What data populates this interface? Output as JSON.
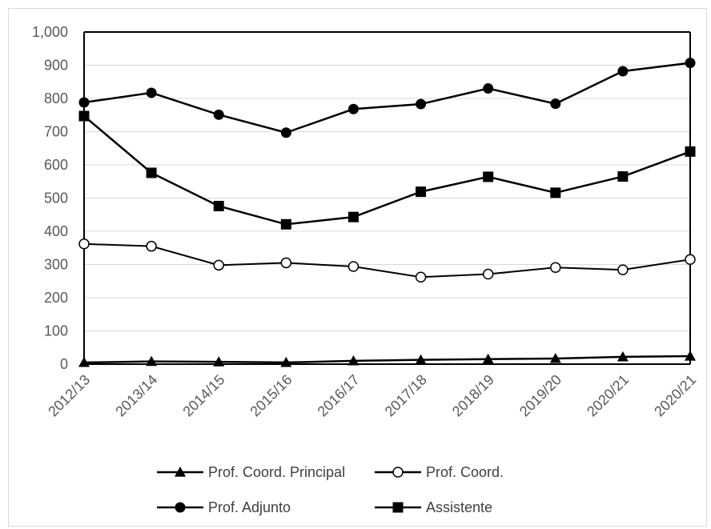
{
  "chart_data": {
    "type": "line",
    "categories": [
      "2012/13",
      "2013/14",
      "2014/15",
      "2015/16",
      "2016/17",
      "2017/18",
      "2018/19",
      "2019/20",
      "2020/21",
      "2020/21"
    ],
    "ylim": [
      0,
      1000
    ],
    "yticks": [
      0,
      100,
      200,
      300,
      400,
      500,
      600,
      700,
      800,
      900,
      1000
    ],
    "ytick_labels": [
      "0",
      "100",
      "200",
      "300",
      "400",
      "500",
      "600",
      "700",
      "800",
      "900",
      "1,000"
    ],
    "grid": true,
    "legend_position": "bottom",
    "series": [
      {
        "name": "Prof. Coord. Principal",
        "marker": "triangle",
        "color": "#000000",
        "values": [
          5,
          8,
          7,
          5,
          10,
          13,
          15,
          17,
          22,
          24
        ]
      },
      {
        "name": "Prof. Coord.",
        "marker": "circle-open",
        "color": "#000000",
        "values": [
          362,
          355,
          298,
          305,
          294,
          262,
          271,
          291,
          284,
          315
        ]
      },
      {
        "name": "Prof. Adjunto",
        "marker": "circle",
        "color": "#000000",
        "values": [
          788,
          817,
          751,
          697,
          768,
          783,
          830,
          784,
          882,
          907
        ]
      },
      {
        "name": "Assistente",
        "marker": "square",
        "color": "#000000",
        "values": [
          747,
          576,
          476,
          421,
          443,
          519,
          564,
          516,
          565,
          640
        ]
      }
    ]
  }
}
